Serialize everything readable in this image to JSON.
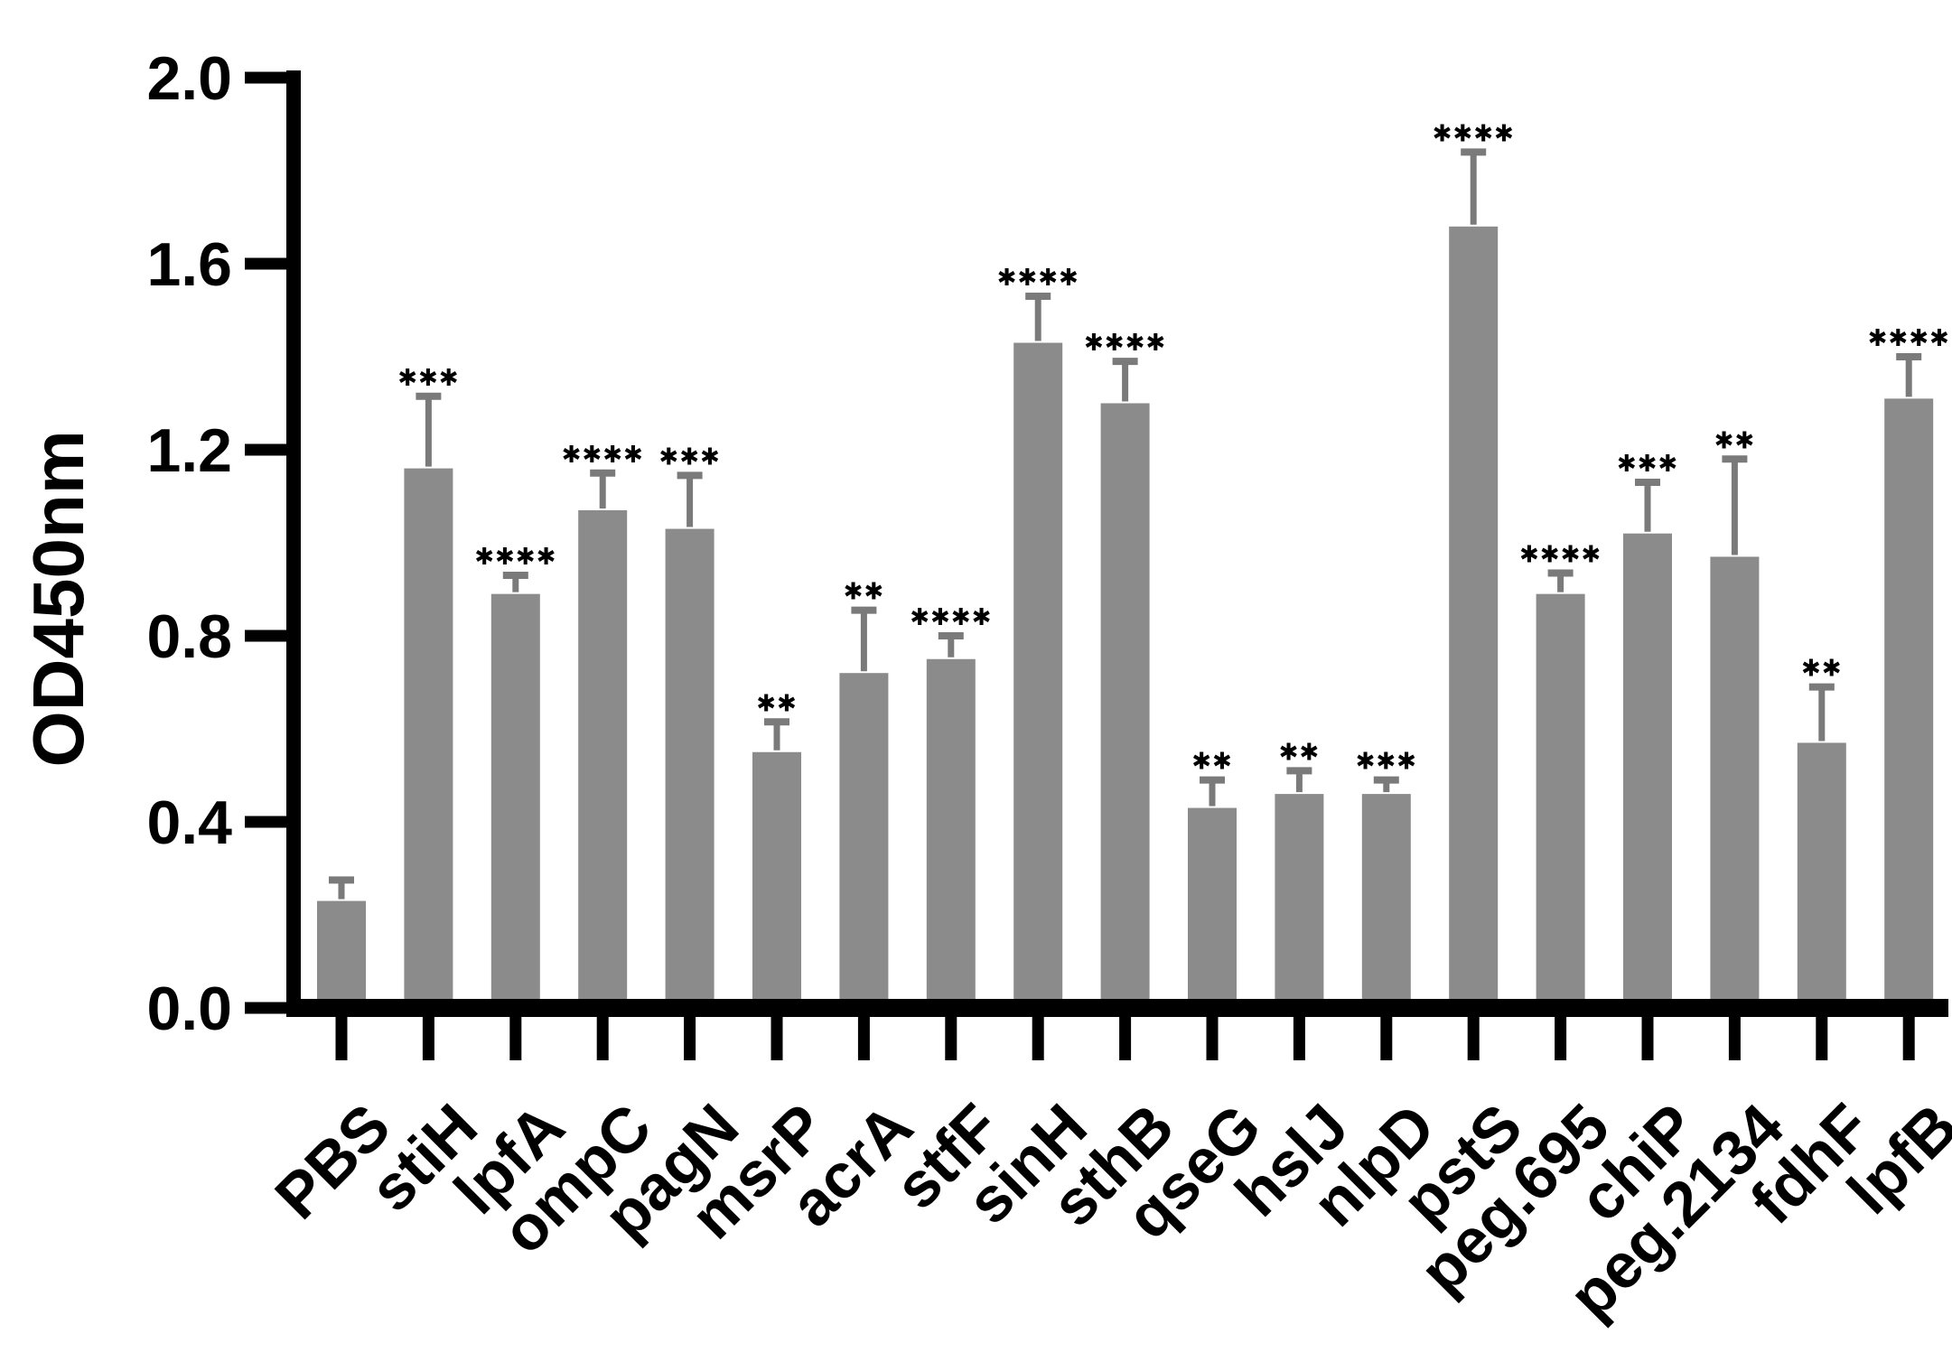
{
  "figure": {
    "background_color": "#ffffff"
  },
  "chart_data": {
    "type": "bar",
    "title": "",
    "xlabel": "",
    "ylabel": "OD450nm",
    "ylim": [
      0,
      2.0
    ],
    "ytick_values": [
      0.0,
      0.4,
      0.8,
      1.2,
      1.6,
      2.0
    ],
    "ytick_labels": [
      "0.0",
      "0.4",
      "0.8",
      "1.2",
      "1.6",
      "2.0"
    ],
    "grid": false,
    "legend_position": "none",
    "bar_color": "#8b8b8b",
    "error_bar_color": "#7a7a7a",
    "axis_color": "#000000",
    "text_color": "#000000",
    "categories": [
      "PBS",
      "stiH",
      "lpfA",
      "ompC",
      "pagN",
      "msrP",
      "acrA",
      "stfF",
      "sinH",
      "sthB",
      "qseG",
      "hslJ",
      "nlpD",
      "pstS",
      "peg.695",
      "chiP",
      "peg.2134",
      "fdhF",
      "lpfB"
    ],
    "values": [
      0.23,
      1.16,
      0.89,
      1.07,
      1.03,
      0.55,
      0.72,
      0.75,
      1.43,
      1.3,
      0.43,
      0.46,
      0.46,
      1.68,
      0.89,
      1.02,
      0.97,
      0.57,
      1.31
    ],
    "errors_upper": [
      0.045,
      0.155,
      0.04,
      0.08,
      0.115,
      0.065,
      0.135,
      0.05,
      0.1,
      0.09,
      0.06,
      0.05,
      0.03,
      0.16,
      0.045,
      0.11,
      0.21,
      0.12,
      0.09
    ],
    "significance": [
      "",
      "***",
      "****",
      "****",
      "***",
      "**",
      "**",
      "****",
      "****",
      "****",
      "**",
      "**",
      "***",
      "****",
      "****",
      "***",
      "**",
      "**",
      "****"
    ]
  }
}
